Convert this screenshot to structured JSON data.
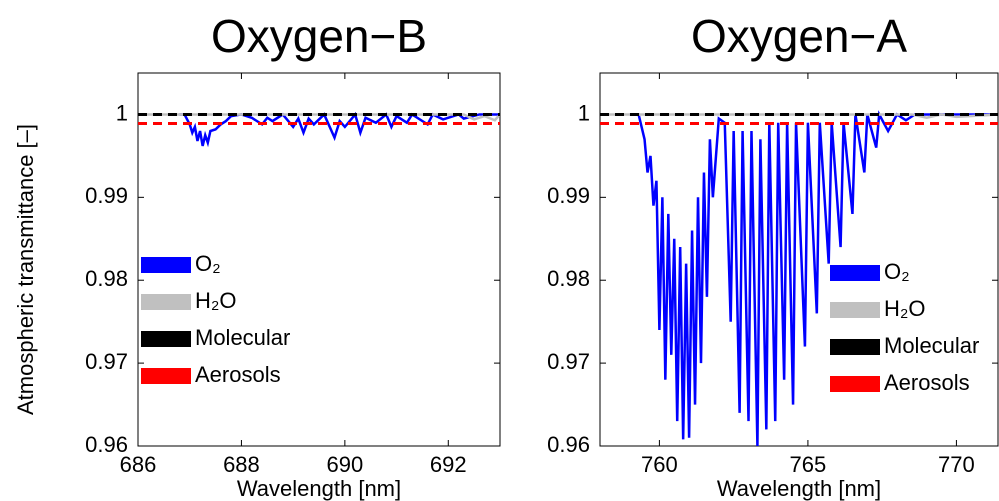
{
  "chart_data": [
    {
      "type": "line",
      "title": "Oxygen−B",
      "xlabel": "Wavelength [nm]",
      "ylabel": "Atmospheric transmittance [–]",
      "xlim": [
        686,
        693
      ],
      "xticks": [
        686,
        688,
        690,
        692
      ],
      "ylim": [
        0.96,
        1.005
      ],
      "yticks": [
        0.96,
        0.97,
        0.98,
        0.99,
        1
      ],
      "legend": "center left",
      "series": [
        {
          "name": "O₂",
          "color": "#0000ff",
          "style": "solid",
          "x": [
            686.8,
            686.9,
            687.0,
            687.05,
            687.1,
            687.15,
            687.2,
            687.25,
            687.3,
            687.35,
            687.4,
            687.5,
            687.6,
            687.7,
            687.8,
            688.0,
            688.2,
            688.4,
            688.5,
            688.6,
            688.8,
            689.0,
            689.1,
            689.2,
            689.3,
            689.4,
            689.6,
            689.8,
            689.9,
            690.0,
            690.2,
            690.3,
            690.4,
            690.6,
            690.8,
            690.9,
            691.0,
            691.2,
            691.3,
            691.6,
            691.7,
            691.9,
            692.2,
            692.3,
            692.6,
            693.0
          ],
          "values": [
            1,
            1,
            0.9988,
            0.9978,
            0.9985,
            0.9968,
            0.998,
            0.9962,
            0.9975,
            0.9966,
            0.998,
            0.9982,
            0.9988,
            0.9992,
            0.9998,
            1,
            0.9996,
            0.9988,
            0.9996,
            0.9992,
            1,
            0.9985,
            0.9995,
            0.9978,
            0.9995,
            0.9988,
            1,
            0.9972,
            0.9992,
            0.9985,
            1,
            0.9978,
            0.9996,
            0.999,
            1,
            0.9985,
            0.9998,
            0.999,
            1,
            0.9988,
            1,
            0.9994,
            1,
            0.9995,
            1,
            1
          ]
        },
        {
          "name": "H₂O",
          "color": "#c0c0c0",
          "style": "solid",
          "x": [
            686,
            692.3,
            692.5,
            692.7,
            692.9,
            693
          ],
          "values": [
            1,
            1,
            0.9994,
            0.9998,
            0.9993,
            1
          ]
        },
        {
          "name": "Molecular",
          "color": "#000000",
          "style": "dashed",
          "x": [
            686,
            693
          ],
          "values": [
            1,
            1
          ]
        },
        {
          "name": "Aerosols",
          "color": "#ff0000",
          "style": "dashed",
          "x": [
            686,
            693
          ],
          "values": [
            0.9989,
            0.9989
          ]
        }
      ]
    },
    {
      "type": "line",
      "title": "Oxygen−A",
      "xlabel": "Wavelength [nm]",
      "xlim": [
        758,
        771.4
      ],
      "xticks": [
        760,
        765,
        770
      ],
      "ylim": [
        0.96,
        1.005
      ],
      "yticks": [
        0.96,
        0.97,
        0.98,
        0.99,
        1
      ],
      "legend": "center right",
      "series": [
        {
          "name": "O₂",
          "color": "#0000ff",
          "style": "solid",
          "x": [
            759.0,
            759.3,
            759.5,
            759.6,
            759.7,
            759.8,
            759.9,
            760.0,
            760.1,
            760.2,
            760.3,
            760.4,
            760.5,
            760.6,
            760.7,
            760.8,
            760.9,
            761.0,
            761.1,
            761.2,
            761.3,
            761.4,
            761.5,
            761.6,
            761.7,
            761.8,
            762.0,
            762.2,
            762.4,
            762.5,
            762.7,
            762.8,
            763.0,
            763.1,
            763.3,
            763.4,
            763.6,
            763.7,
            763.9,
            764.0,
            764.2,
            764.3,
            764.5,
            764.6,
            764.9,
            765.0,
            765.3,
            765.4,
            765.7,
            765.8,
            766.1,
            766.2,
            766.5,
            766.6,
            766.9,
            767.0,
            767.3,
            767.4,
            767.7,
            768.0,
            768.3,
            768.6,
            771.4
          ],
          "values": [
            1,
            1,
            0.997,
            0.993,
            0.995,
            0.989,
            0.992,
            0.974,
            0.99,
            0.968,
            0.988,
            0.971,
            0.985,
            0.963,
            0.984,
            0.9608,
            0.982,
            0.961,
            0.986,
            0.965,
            0.99,
            0.97,
            0.993,
            0.978,
            0.997,
            0.99,
            0.9995,
            0.999,
            0.975,
            0.998,
            0.964,
            0.998,
            0.963,
            0.998,
            0.96,
            0.997,
            0.962,
            0.999,
            0.963,
            0.999,
            0.968,
            0.999,
            0.965,
            0.999,
            0.972,
            0.999,
            0.976,
            0.999,
            0.982,
            0.999,
            0.984,
            0.999,
            0.988,
            1,
            0.993,
            1,
            0.996,
            1,
            0.998,
            1,
            0.9993,
            1,
            1
          ]
        },
        {
          "name": "H₂O",
          "color": "#c0c0c0",
          "style": "solid",
          "x": [
            758,
            768.5,
            769.0,
            769.5,
            770.0,
            771.4
          ],
          "values": [
            1,
            1,
            0.9996,
            1,
            0.9997,
            1
          ]
        },
        {
          "name": "Molecular",
          "color": "#000000",
          "style": "dashed",
          "x": [
            758,
            771.4
          ],
          "values": [
            1,
            1
          ]
        },
        {
          "name": "Aerosols",
          "color": "#ff0000",
          "style": "dashed",
          "x": [
            758,
            771.4
          ],
          "values": [
            0.9989,
            0.9989
          ]
        }
      ]
    }
  ]
}
